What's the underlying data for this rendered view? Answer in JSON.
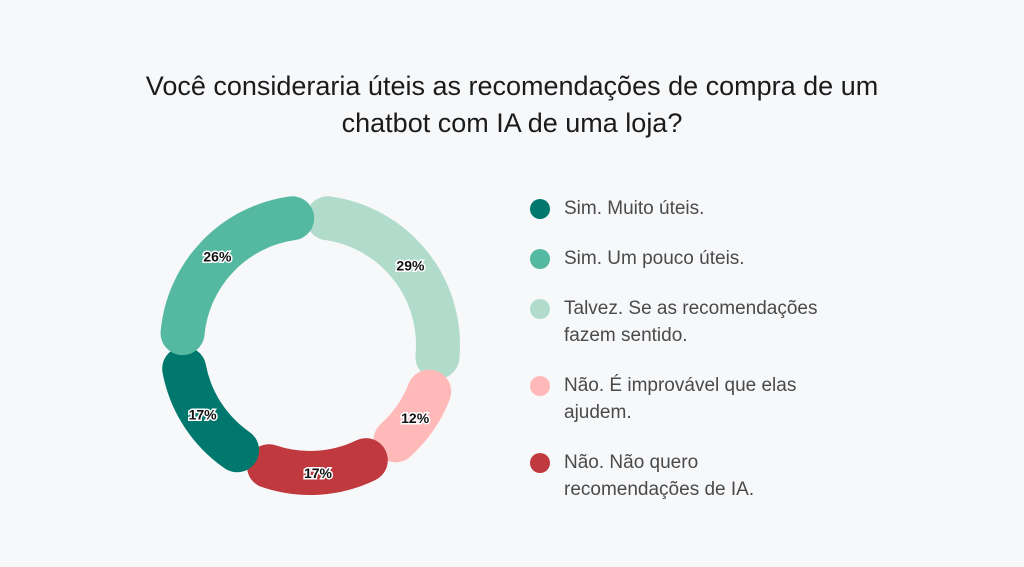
{
  "title_lines": [
    "Você consideraria úteis as recomendações de compra de um",
    "chatbot com IA de uma loja?"
  ],
  "chart_data": {
    "type": "pie",
    "title": "Você consideraria úteis as recomendações de compra de um chatbot com IA de uma loja?",
    "style": "donut",
    "categories": [
      "Sim. Muito úteis.",
      "Sim. Um pouco úteis.",
      "Talvez. Se as recomendações fazem sentido.",
      "Não. É improvável que elas ajudem.",
      "Não. Não quero recomendações de IA."
    ],
    "values": [
      17,
      26,
      29,
      12,
      17
    ],
    "data_labels": [
      "17%",
      "26%",
      "29%",
      "12%",
      "17%"
    ],
    "colors": [
      "#00786e",
      "#55b9a1",
      "#b1dccb",
      "#ffb9b9",
      "#c0393e"
    ],
    "legend_position": "right"
  },
  "legend": [
    {
      "lines": [
        "Sim. Muito úteis."
      ],
      "color": "#00786e"
    },
    {
      "lines": [
        "Sim. Um pouco úteis."
      ],
      "color": "#55b9a1"
    },
    {
      "lines": [
        "Talvez. Se as recomendações",
        "fazem sentido."
      ],
      "color": "#b1dccb"
    },
    {
      "lines": [
        "Não. É improvável que elas",
        "ajudem."
      ],
      "color": "#ffb9b9"
    },
    {
      "lines": [
        "Não. Não quero",
        "recomendações de IA."
      ],
      "color": "#c0393e"
    }
  ]
}
